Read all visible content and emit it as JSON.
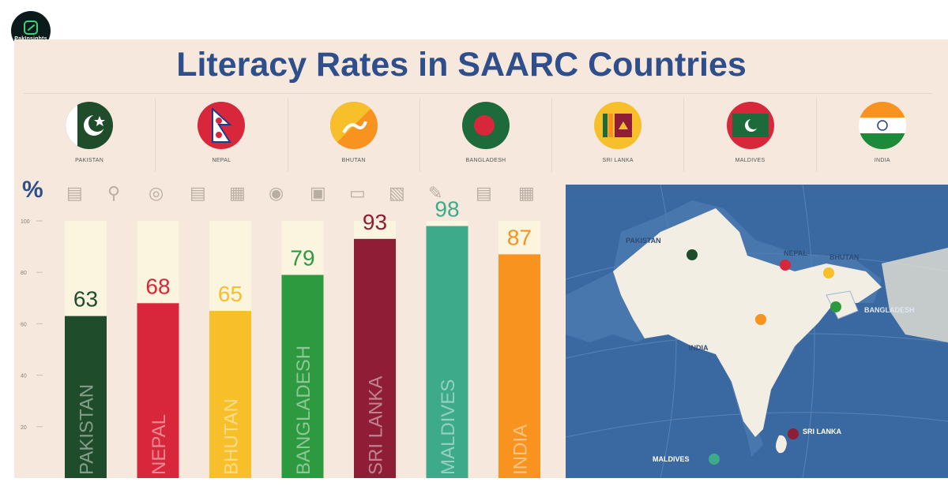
{
  "logo": {
    "text": "PakInsights",
    "icon": "logo-icon"
  },
  "title": "Literacy Rates in SAARC Countries",
  "flags": [
    {
      "name": "PAKISTAN",
      "icon": "pakistan-flag-icon"
    },
    {
      "name": "NEPAL",
      "icon": "nepal-flag-icon"
    },
    {
      "name": "BHUTAN",
      "icon": "bhutan-flag-icon"
    },
    {
      "name": "BANGLADESH",
      "icon": "bangladesh-flag-icon"
    },
    {
      "name": "SRI LANKA",
      "icon": "sri-lanka-flag-icon"
    },
    {
      "name": "MALDIVES",
      "icon": "maldives-flag-icon"
    },
    {
      "name": "INDIA",
      "icon": "india-flag-icon"
    }
  ],
  "percent_symbol": "%",
  "icon_row": [
    "book-icon",
    "magnifier-icon",
    "globe-icon",
    "notebook-icon",
    "books-icon",
    "award-icon",
    "monitor-icon",
    "tablet-icon",
    "open-book-icon",
    "pencil-icon",
    "stack-icon",
    "reader-icon"
  ],
  "chart_data": {
    "type": "bar",
    "categories": [
      "PAKISTAN",
      "NEPAL",
      "BHUTAN",
      "BANGLADESH",
      "SRI LANKA",
      "MALDIVES",
      "INDIA"
    ],
    "values": [
      63,
      68,
      65,
      79,
      93,
      98,
      87
    ],
    "colors": [
      "#1f4d2b",
      "#d8263a",
      "#f7c02a",
      "#2e9a3f",
      "#8f1d36",
      "#3daa8a",
      "#f7931e"
    ],
    "yticks": [
      20,
      40,
      60,
      80,
      100
    ],
    "ylim": [
      0,
      100
    ],
    "ylabel": "%",
    "grid": false
  },
  "map": {
    "labels": [
      "PAKISTAN",
      "NEPAL",
      "BHUTAN",
      "BANGLADESH",
      "INDIA",
      "SRI LANKA",
      "MALDIVES"
    ],
    "marker_colors": [
      "#1f4d2b",
      "#d8263a",
      "#f7c02a",
      "#2e9a3f",
      "#f7931e",
      "#8f1d36",
      "#3daa8a"
    ]
  }
}
